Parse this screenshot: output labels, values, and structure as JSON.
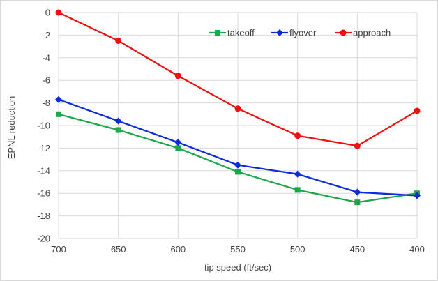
{
  "chart_data": {
    "type": "line",
    "title": "",
    "xlabel": "tip speed (ft/sec)",
    "ylabel": "EPNL reduction",
    "x": [
      700,
      650,
      600,
      550,
      500,
      450,
      400
    ],
    "xlim": [
      700,
      400
    ],
    "ylim": [
      -20,
      0
    ],
    "xticks": [
      "700",
      "650",
      "600",
      "550",
      "500",
      "450",
      "400"
    ],
    "yticks": [
      "0",
      "-2",
      "-4",
      "-6",
      "-8",
      "-10",
      "-12",
      "-14",
      "-16",
      "-18",
      "-20"
    ],
    "ytick_values": [
      0,
      -2,
      -4,
      -6,
      -8,
      -10,
      -12,
      -14,
      -16,
      -18,
      -20
    ],
    "grid": true,
    "legend_position": "top-right",
    "series": [
      {
        "name": "takeoff",
        "color": "#1fa64a",
        "marker": "square",
        "values": [
          -9.0,
          -10.4,
          -12.0,
          -14.1,
          -15.7,
          -16.8,
          -16.0
        ]
      },
      {
        "name": "flyover",
        "color": "#0a2bdc",
        "marker": "diamond",
        "values": [
          -7.7,
          -9.6,
          -11.5,
          -13.5,
          -14.3,
          -15.9,
          -16.2
        ]
      },
      {
        "name": "approach",
        "color": "#ee1111",
        "marker": "circle",
        "values": [
          0.0,
          -2.5,
          -5.6,
          -8.5,
          -10.9,
          -11.8,
          -8.7
        ]
      }
    ]
  }
}
